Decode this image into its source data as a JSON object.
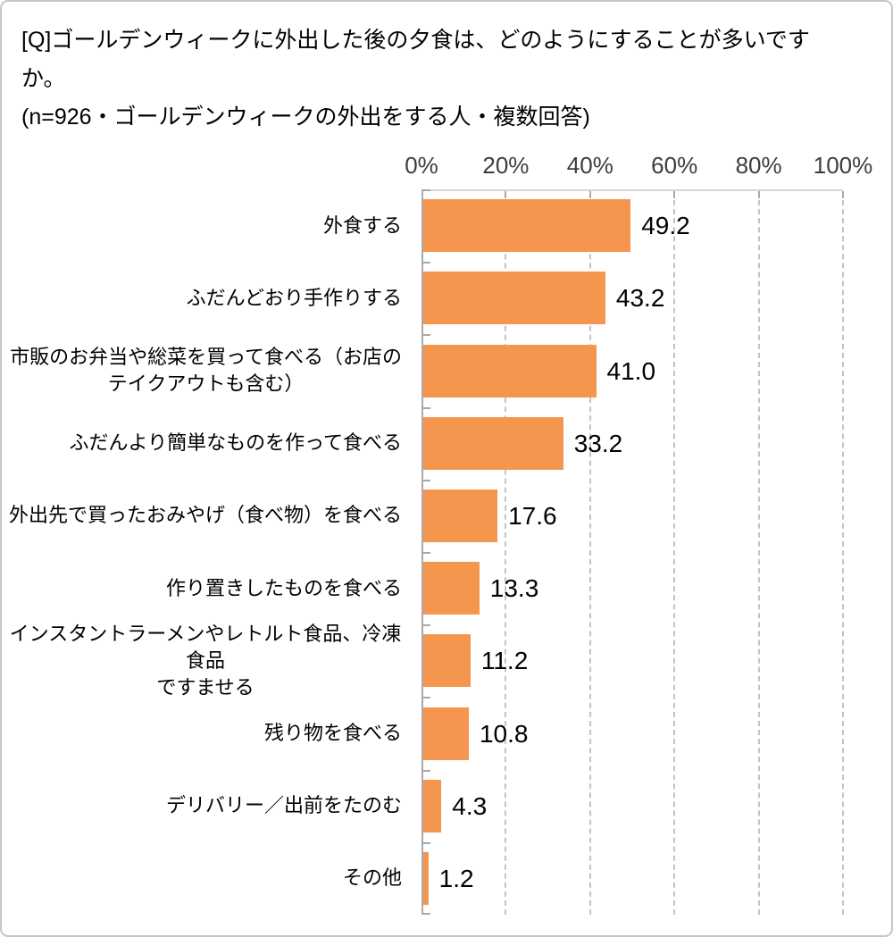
{
  "title": {
    "question": "[Q]ゴールデンウィークに外出した後の夕食は、どのようにすることが多いです\nか。",
    "note": "(n=926・ゴールデンウィークの外出をする人・複数回答)"
  },
  "chart_data": {
    "type": "bar",
    "orientation": "horizontal",
    "title": "",
    "xlabel": "",
    "ylabel": "",
    "xlim": [
      0,
      100
    ],
    "x_tick_labels": [
      "0%",
      "20%",
      "40%",
      "60%",
      "80%",
      "100%"
    ],
    "x_tick_values": [
      0,
      20,
      40,
      60,
      80,
      100
    ],
    "grid": "vertical-dashed",
    "legend": "none",
    "categories": [
      "外食する",
      "ふだんどおり手作りする",
      "市販のお弁当や総菜を買って食べる（お店の\nテイクアウトも含む）",
      "ふだんより簡単なものを作って食べる",
      "外出先で買ったおみやげ（食べ物）を食べる",
      "作り置きしたものを食べる",
      "インスタントラーメンやレトルト食品、冷凍食品\nですませる",
      "残り物を食べる",
      "デリバリー／出前をたのむ",
      "その他"
    ],
    "values": [
      49.2,
      43.2,
      41.0,
      33.2,
      17.6,
      13.3,
      11.2,
      10.8,
      4.3,
      1.2
    ],
    "value_labels": [
      "49.2",
      "43.2",
      "41.0",
      "33.2",
      "17.6",
      "13.3",
      "11.2",
      "10.8",
      "4.3",
      "1.2"
    ]
  },
  "colors": {
    "bar": "#f4964e",
    "gridline": "#c3c3c3",
    "axis_line": "#a9a9a9",
    "card_border": "#c6c6c6",
    "text": "#000000",
    "tick_label_text": "#3d3d3d"
  }
}
